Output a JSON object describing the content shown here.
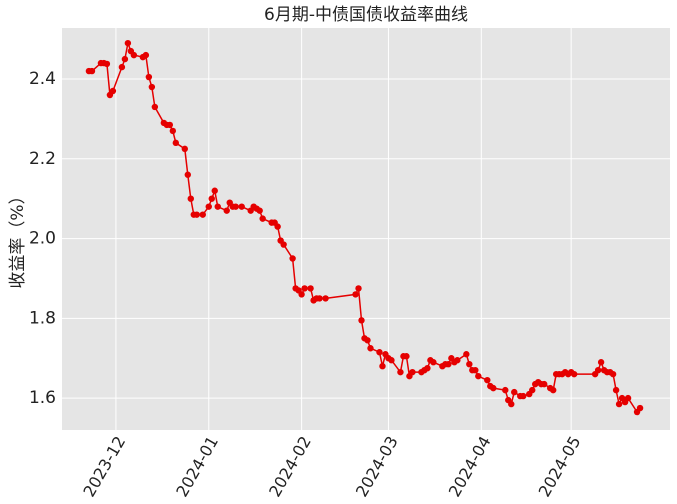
{
  "chart_data": {
    "type": "line",
    "title": "6月期-中债国债收益率曲线",
    "y_label": "收益率（%）",
    "x": [
      19683,
      19684,
      19687,
      19688,
      19689,
      19690,
      19691,
      19694,
      19695,
      19696,
      19697,
      19698,
      19701,
      19702,
      19703,
      19704,
      19705,
      19708,
      19709,
      19710,
      19711,
      19712,
      19715,
      19716,
      19717,
      19718,
      19719,
      19721,
      19723,
      19724,
      19725,
      19726,
      19729,
      19730,
      19731,
      19732,
      19734,
      19737,
      19738,
      19739,
      19740,
      19741,
      19744,
      19745,
      19746,
      19747,
      19748,
      19751,
      19752,
      19753,
      19754,
      19755,
      19757,
      19758,
      19759,
      19760,
      19762,
      19772,
      19773,
      19774,
      19775,
      19776,
      19777,
      19780,
      19781,
      19782,
      19783,
      19784,
      19787,
      19788,
      19789,
      19790,
      19791,
      19794,
      19795,
      19796,
      19797,
      19798,
      19801,
      19802,
      19803,
      19804,
      19805,
      19806,
      19809,
      19810,
      19811,
      19812,
      19813,
      19816,
      19817,
      19818,
      19822,
      19823,
      19824,
      19825,
      19827,
      19828,
      19830,
      19831,
      19832,
      19833,
      19834,
      19835,
      19837,
      19838,
      19839,
      19840,
      19841,
      19842,
      19843,
      19844,
      19845,
      19852,
      19853,
      19854,
      19855,
      19856,
      19857,
      19858,
      19859,
      19860,
      19861,
      19862,
      19863,
      19866,
      19867
    ],
    "series": [
      {
        "color": "#e50000",
        "values": [
          2.42,
          2.42,
          2.44,
          2.44,
          2.438,
          2.36,
          2.37,
          2.43,
          2.45,
          2.49,
          2.47,
          2.46,
          2.455,
          2.46,
          2.405,
          2.38,
          2.33,
          2.29,
          2.285,
          2.285,
          2.27,
          2.24,
          2.225,
          2.16,
          2.1,
          2.06,
          2.06,
          2.06,
          2.08,
          2.1,
          2.12,
          2.08,
          2.07,
          2.09,
          2.08,
          2.08,
          2.08,
          2.07,
          2.08,
          2.075,
          2.07,
          2.05,
          2.04,
          2.04,
          2.03,
          1.995,
          1.985,
          1.95,
          1.875,
          1.87,
          1.86,
          1.875,
          1.875,
          1.845,
          1.85,
          1.85,
          1.85,
          1.86,
          1.875,
          1.795,
          1.75,
          1.745,
          1.725,
          1.715,
          1.68,
          1.71,
          1.7,
          1.695,
          1.665,
          1.705,
          1.705,
          1.655,
          1.665,
          1.665,
          1.67,
          1.675,
          1.695,
          1.69,
          1.68,
          1.685,
          1.685,
          1.7,
          1.69,
          1.695,
          1.71,
          1.685,
          1.67,
          1.67,
          1.655,
          1.645,
          1.63,
          1.625,
          1.62,
          1.595,
          1.585,
          1.615,
          1.605,
          1.605,
          1.61,
          1.62,
          1.635,
          1.64,
          1.635,
          1.635,
          1.625,
          1.62,
          1.66,
          1.66,
          1.66,
          1.665,
          1.66,
          1.665,
          1.66,
          1.66,
          1.67,
          1.69,
          1.67,
          1.665,
          1.665,
          1.66,
          1.62,
          1.585,
          1.6,
          1.59,
          1.6,
          1.565,
          1.575
        ]
      }
    ],
    "xlim": [
      19674,
      19877
    ],
    "xticks": [
      {
        "value": 19692,
        "label": "2023-12"
      },
      {
        "value": 19723,
        "label": "2024-01"
      },
      {
        "value": 19754,
        "label": "2024-02"
      },
      {
        "value": 19783,
        "label": "2024-03"
      },
      {
        "value": 19814,
        "label": "2024-04"
      },
      {
        "value": 19844,
        "label": "2024-05"
      }
    ],
    "ylim": [
      1.52,
      2.528
    ],
    "yticks": [
      {
        "value": 1.6,
        "label": "1.6"
      },
      {
        "value": 1.8,
        "label": "1.8"
      },
      {
        "value": 2.0,
        "label": "2.0"
      },
      {
        "value": 2.2,
        "label": "2.2"
      },
      {
        "value": 2.4,
        "label": "2.4"
      }
    ],
    "grid": true
  }
}
